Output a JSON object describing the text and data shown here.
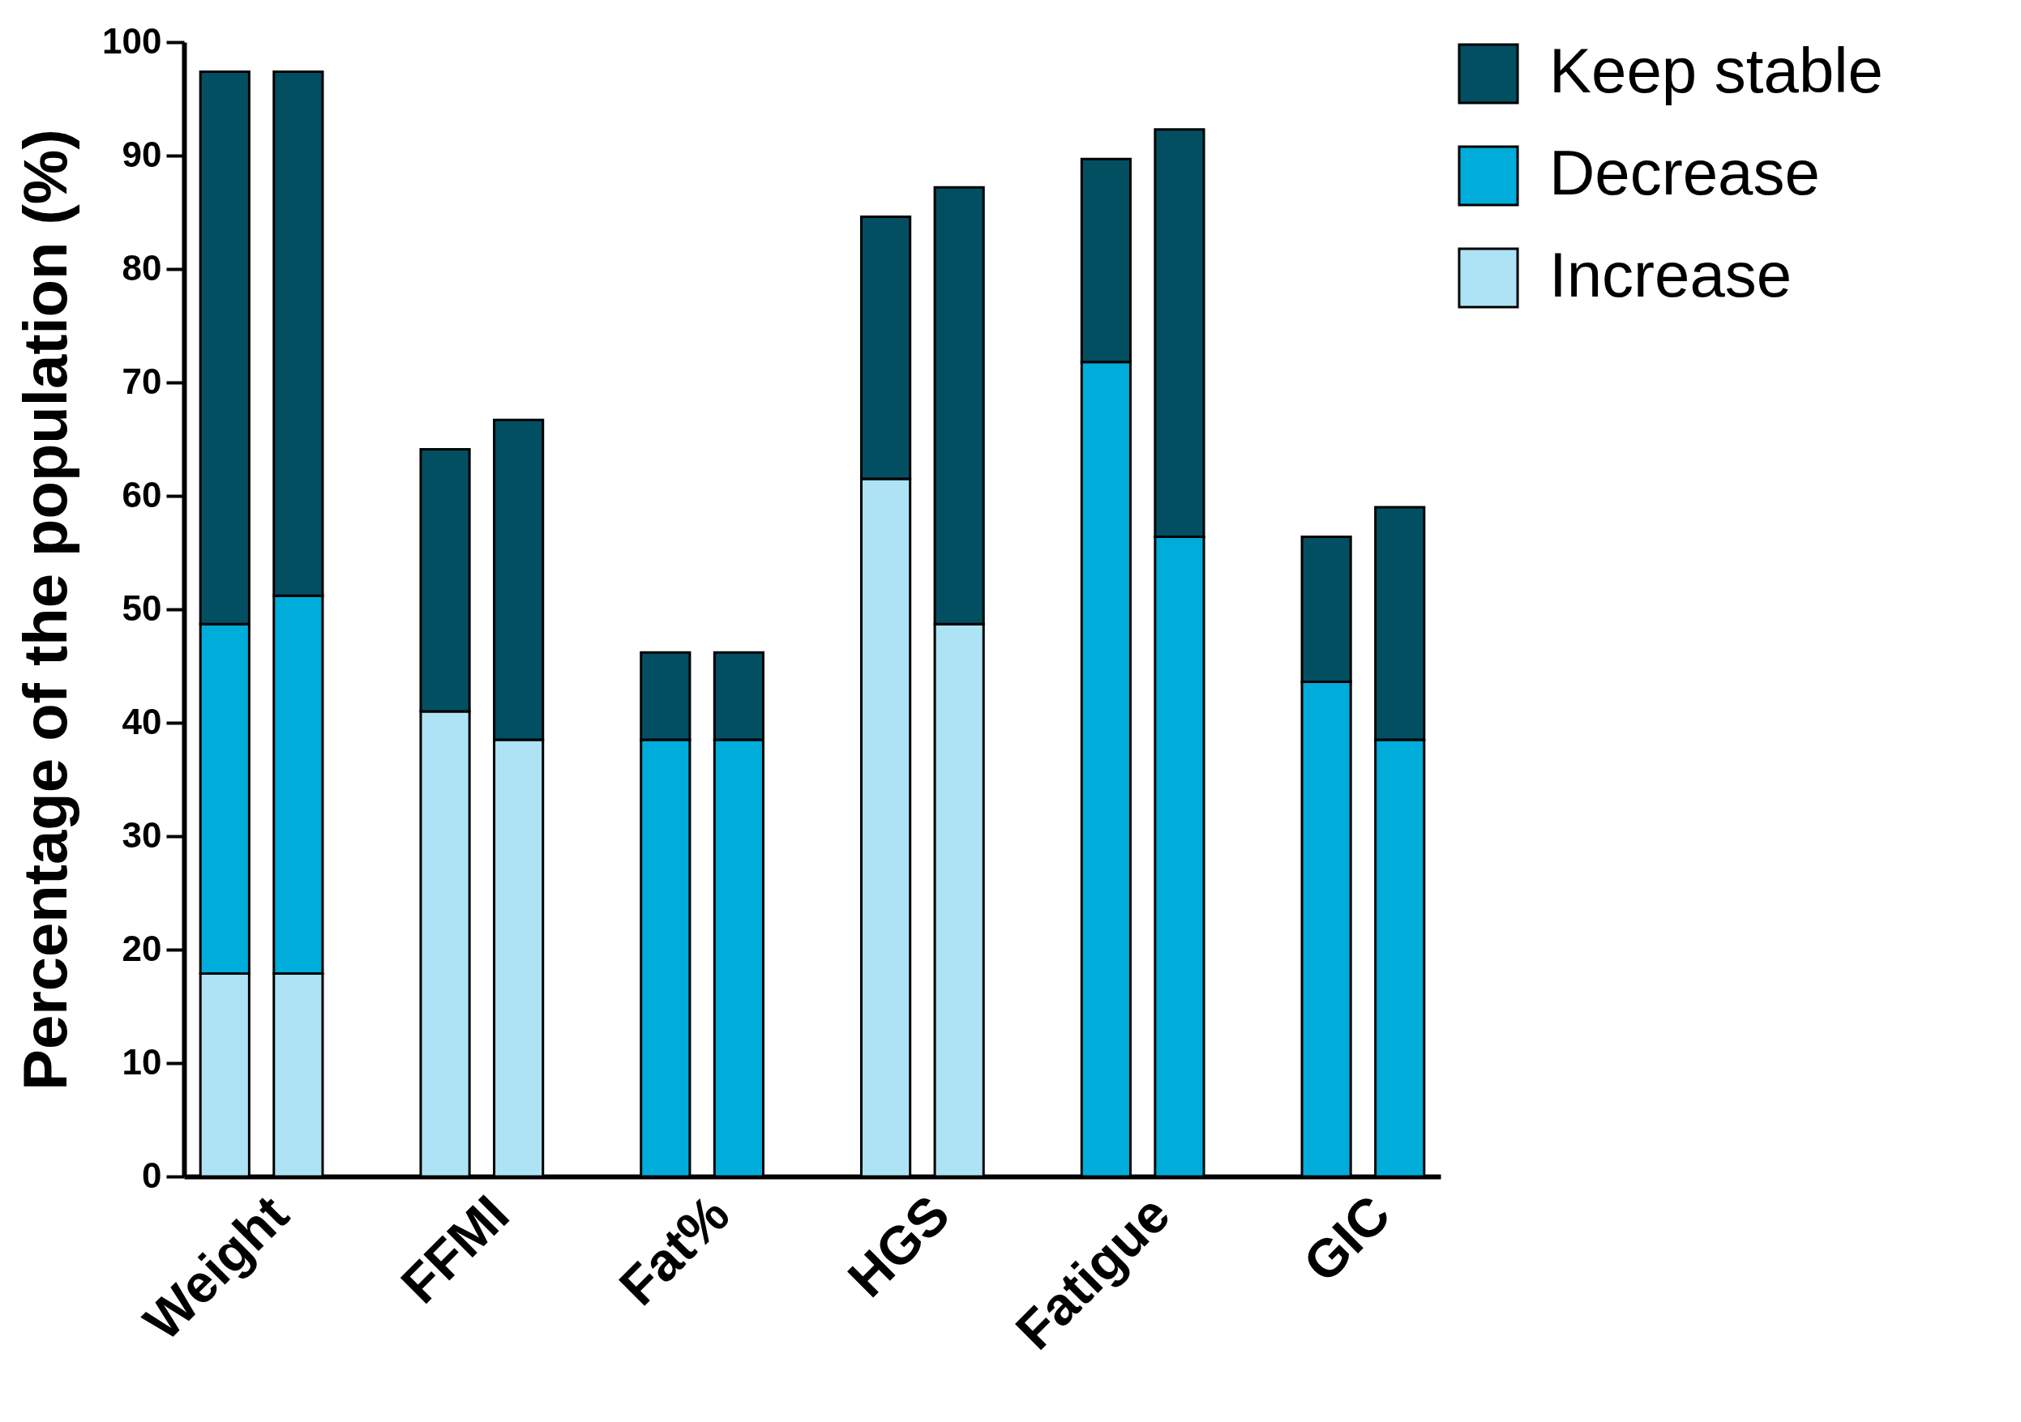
{
  "chart_data": {
    "type": "bar",
    "stacked": true,
    "ylabel": "Percentage of the population (%)",
    "categories": [
      "Weight",
      null,
      "FFMI",
      null,
      "Fat%",
      null,
      "HGS",
      null,
      "Fatigue",
      null,
      "GIC",
      null
    ],
    "series": [
      {
        "name": "Increase",
        "color": "#aee3f5",
        "values": [
          17.9,
          17.9,
          41.0,
          38.5,
          null,
          null,
          61.5,
          48.7,
          null,
          null,
          null,
          null
        ]
      },
      {
        "name": "Decrease",
        "color": "#00acd9",
        "values": [
          30.8,
          33.3,
          null,
          null,
          38.5,
          38.5,
          null,
          null,
          71.8,
          56.4,
          43.6,
          38.5
        ]
      },
      {
        "name": "Keep stable",
        "color": "#034f62",
        "values": [
          48.7,
          46.2,
          23.1,
          28.2,
          7.7,
          7.7,
          23.1,
          38.5,
          17.9,
          35.9,
          12.8,
          20.5
        ]
      }
    ],
    "ylim": [
      0,
      100
    ],
    "yticks": [
      0,
      10,
      20,
      30,
      40,
      50,
      60,
      70,
      80,
      90,
      100
    ],
    "grid": false,
    "legend": "top right"
  }
}
